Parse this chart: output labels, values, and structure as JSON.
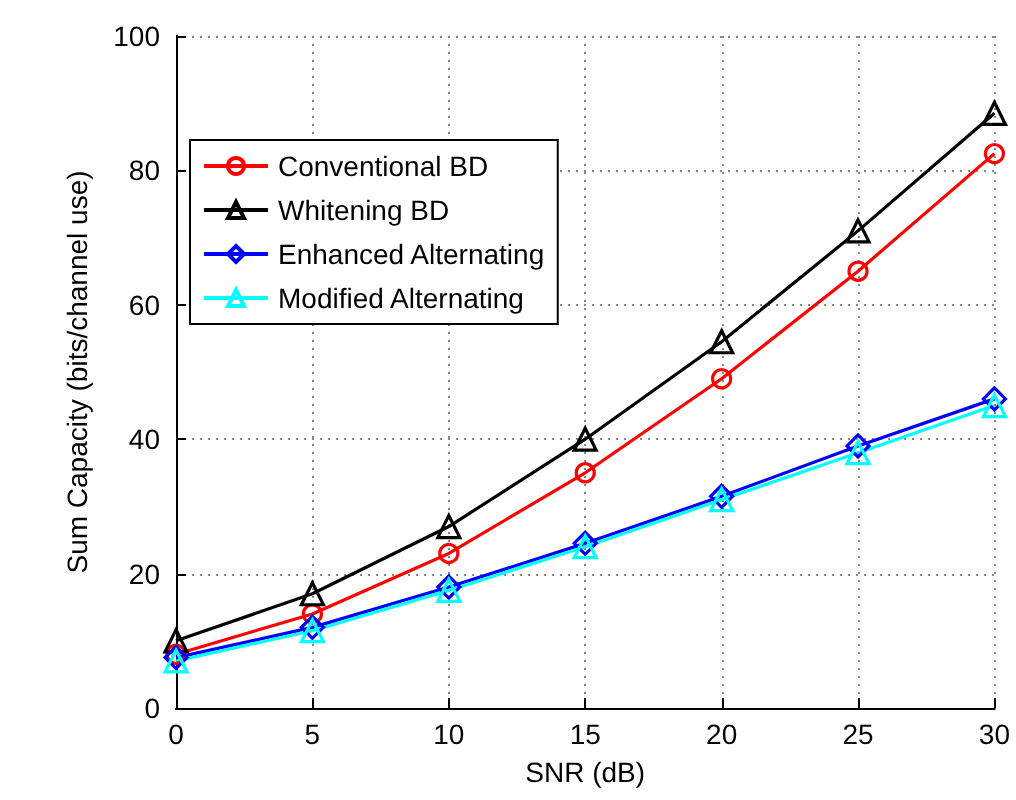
{
  "chart_data": {
    "type": "line",
    "xlabel": "SNR (dB)",
    "ylabel": "Sum Capacity (bits/channel use)",
    "x": [
      0,
      5,
      10,
      15,
      20,
      25,
      30
    ],
    "series": [
      {
        "name": "Conventional BD",
        "color": "#ff0000",
        "marker": "circle",
        "values": [
          8,
          14,
          23,
          35,
          49,
          65,
          82.5
        ]
      },
      {
        "name": "Whitening BD",
        "color": "#000000",
        "marker": "triangle",
        "values": [
          10,
          17,
          27,
          40,
          54.5,
          71,
          88.5
        ]
      },
      {
        "name": "Enhanced Alternating",
        "color": "#0000ff",
        "marker": "diamond",
        "values": [
          7.5,
          12,
          18,
          24.5,
          31.5,
          39,
          46
        ]
      },
      {
        "name": "Modified Alternating",
        "color": "#00ffff",
        "marker": "triangle",
        "values": [
          7,
          11.5,
          17.5,
          24,
          31,
          38,
          45
        ]
      }
    ],
    "xlim": [
      0,
      30
    ],
    "xticks": [
      0,
      5,
      10,
      15,
      20,
      25,
      30
    ],
    "ylim": [
      0,
      100
    ],
    "yticks": [
      0,
      20,
      40,
      60,
      80,
      100
    ],
    "grid": true,
    "legend": "top left",
    "line_style": "solid"
  }
}
